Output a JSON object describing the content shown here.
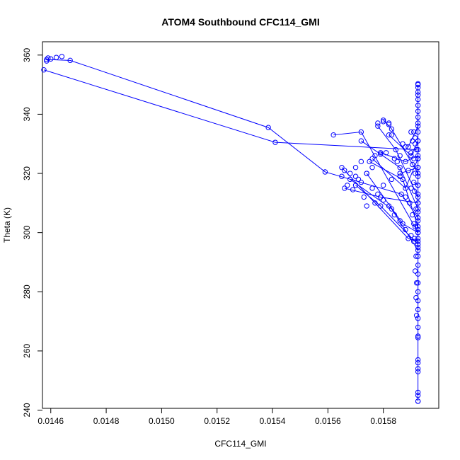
{
  "chart_data": {
    "type": "scatter",
    "title": "ATOM4 Southbound CFC114_GMI",
    "xlabel": "CFC114_GMI",
    "ylabel": "Theta (K)",
    "xlim": [
      0.01457,
      0.016
    ],
    "ylim": [
      240.6,
      364.5
    ],
    "x_ticks": [
      {
        "value": 0.0146,
        "label": "0.0146"
      },
      {
        "value": 0.0148,
        "label": "0.0148"
      },
      {
        "value": 0.015,
        "label": "0.0150"
      },
      {
        "value": 0.0152,
        "label": "0.0152"
      },
      {
        "value": 0.0154,
        "label": "0.0154"
      },
      {
        "value": 0.0156,
        "label": "0.0156"
      },
      {
        "value": 0.0158,
        "label": "0.0158"
      }
    ],
    "y_ticks": [
      {
        "value": 240,
        "label": "240"
      },
      {
        "value": 260,
        "label": "260"
      },
      {
        "value": 280,
        "label": "280"
      },
      {
        "value": 300,
        "label": "300"
      },
      {
        "value": 320,
        "label": "320"
      },
      {
        "value": 340,
        "label": "340"
      },
      {
        "value": 360,
        "label": "360"
      }
    ],
    "series_color": "#0000ff",
    "marker": "open-circle",
    "connected": true,
    "grid": false,
    "segments": [
      [
        [
          0.014585,
          358.5
        ],
        [
          0.01467,
          358.2
        ],
        [
          0.015385,
          335.5
        ],
        [
          0.01559,
          320.5
        ],
        [
          0.015865,
          313.0
        ],
        [
          0.015925,
          305.0
        ]
      ],
      [
        [
          0.014575,
          355.0
        ],
        [
          0.01541,
          330.5
        ],
        [
          0.01592,
          328.0
        ]
      ],
      [
        [
          0.01562,
          333.0
        ],
        [
          0.01572,
          334.0
        ],
        [
          0.015925,
          300.0
        ]
      ],
      [
        [
          0.0158,
          338.0
        ],
        [
          0.01583,
          335.0
        ],
        [
          0.015925,
          320.0
        ]
      ],
      [
        [
          0.01578,
          336.0
        ],
        [
          0.015845,
          328.0
        ],
        [
          0.015925,
          312.0
        ]
      ],
      [
        [
          0.01572,
          331.0
        ],
        [
          0.01586,
          322.0
        ],
        [
          0.015925,
          308.0
        ]
      ],
      [
        [
          0.01575,
          324.0
        ],
        [
          0.01587,
          318.0
        ],
        [
          0.015925,
          302.0
        ]
      ],
      [
        [
          0.01565,
          322.0
        ],
        [
          0.01589,
          298.0
        ],
        [
          0.015925,
          297.0
        ]
      ],
      [
        [
          0.01568,
          318.0
        ],
        [
          0.01583,
          308.0
        ],
        [
          0.015925,
          294.0
        ]
      ],
      [
        [
          0.0157,
          316.0
        ],
        [
          0.01579,
          309.0
        ],
        [
          0.015925,
          296.0
        ]
      ],
      [
        [
          0.01576,
          325.0
        ],
        [
          0.01588,
          315.0
        ],
        [
          0.015925,
          325.0
        ]
      ],
      [
        [
          0.01582,
          333.0
        ],
        [
          0.0159,
          326.0
        ],
        [
          0.015925,
          331.0
        ]
      ],
      [
        [
          0.01579,
          327.0
        ],
        [
          0.01588,
          324.0
        ],
        [
          0.015925,
          326.0
        ]
      ],
      [
        [
          0.01574,
          320.0
        ],
        [
          0.01587,
          303.0
        ],
        [
          0.015925,
          300.0
        ]
      ],
      [
        [
          0.01566,
          315.0
        ],
        [
          0.01579,
          312.0
        ],
        [
          0.015925,
          310.0
        ]
      ],
      [
        [
          0.01589,
          329.0
        ],
        [
          0.015925,
          336.0
        ]
      ],
      [
        [
          0.01586,
          320.0
        ],
        [
          0.015925,
          322.0
        ]
      ],
      [
        [
          0.01591,
          317.0
        ],
        [
          0.015925,
          316.0
        ]
      ],
      [
        [
          0.015925,
          350.0
        ],
        [
          0.015925,
          243.0
        ]
      ]
    ],
    "points": [
      [
        0.01459,
        359.0
      ],
      [
        0.0146,
        358.7
      ],
      [
        0.01462,
        359.2
      ],
      [
        0.01464,
        359.5
      ],
      [
        0.014585,
        358.0
      ],
      [
        0.01567,
        316.0
      ],
      [
        0.01569,
        314.5
      ],
      [
        0.01571,
        318.0
      ],
      [
        0.01573,
        312.0
      ],
      [
        0.01578,
        337.0
      ],
      [
        0.0158,
        337.5
      ],
      [
        0.01582,
        336.5
      ],
      [
        0.01582,
        337.0
      ],
      [
        0.01583,
        333.0
      ],
      [
        0.01576,
        322.0
      ],
      [
        0.01577,
        326.0
      ],
      [
        0.01579,
        326.5
      ],
      [
        0.01581,
        327.0
      ],
      [
        0.01585,
        324.0
      ],
      [
        0.01587,
        330.0
      ],
      [
        0.01588,
        329.0
      ],
      [
        0.0159,
        327.0
      ],
      [
        0.01565,
        319.0
      ],
      [
        0.01566,
        321.0
      ],
      [
        0.01568,
        320.0
      ],
      [
        0.0157,
        322.0
      ],
      [
        0.01572,
        324.0
      ],
      [
        0.01574,
        320.0
      ],
      [
        0.01576,
        315.0
      ],
      [
        0.01578,
        313.0
      ],
      [
        0.0158,
        311.0
      ],
      [
        0.01582,
        309.0
      ],
      [
        0.01584,
        306.0
      ],
      [
        0.01586,
        304.0
      ],
      [
        0.01588,
        301.0
      ],
      [
        0.0159,
        299.0
      ],
      [
        0.01591,
        297.0
      ],
      [
        0.01574,
        309.0
      ],
      [
        0.01577,
        310.0
      ],
      [
        0.0158,
        316.0
      ],
      [
        0.01583,
        318.0
      ],
      [
        0.01586,
        319.0
      ],
      [
        0.01589,
        321.0
      ],
      [
        0.015905,
        323.0
      ],
      [
        0.01588,
        312.0
      ],
      [
        0.015895,
        310.0
      ],
      [
        0.0157,
        319.0
      ],
      [
        0.01572,
        317.0
      ],
      [
        0.01584,
        325.0
      ],
      [
        0.01586,
        326.0
      ],
      [
        0.01591,
        334.0
      ],
      [
        0.015915,
        332.0
      ],
      [
        0.0159,
        315.0
      ],
      [
        0.015905,
        306.0
      ],
      [
        0.01591,
        303.0
      ],
      [
        0.015925,
        350.3
      ],
      [
        0.015925,
        349.0
      ],
      [
        0.015925,
        347.5
      ],
      [
        0.015925,
        346.5
      ],
      [
        0.015925,
        345.0
      ],
      [
        0.015925,
        343.0
      ],
      [
        0.015925,
        341.0
      ],
      [
        0.015925,
        339.0
      ],
      [
        0.015925,
        337.0
      ],
      [
        0.015925,
        334.0
      ],
      [
        0.015925,
        331.0
      ],
      [
        0.015925,
        328.0
      ],
      [
        0.015925,
        325.0
      ],
      [
        0.015925,
        322.0
      ],
      [
        0.015925,
        319.0
      ],
      [
        0.015925,
        316.0
      ],
      [
        0.015925,
        313.0
      ],
      [
        0.015925,
        310.0
      ],
      [
        0.015925,
        307.0
      ],
      [
        0.015925,
        304.0
      ],
      [
        0.015925,
        301.0
      ],
      [
        0.015925,
        298.0
      ],
      [
        0.015925,
        295.0
      ],
      [
        0.015925,
        292.0
      ],
      [
        0.015925,
        289.0
      ],
      [
        0.015925,
        286.0
      ],
      [
        0.015925,
        283.0
      ],
      [
        0.015925,
        280.0
      ],
      [
        0.015925,
        277.0
      ],
      [
        0.015925,
        274.0
      ],
      [
        0.015925,
        271.0
      ],
      [
        0.015925,
        268.0
      ],
      [
        0.015925,
        265.0
      ],
      [
        0.015925,
        264.5
      ],
      [
        0.015925,
        257.0
      ],
      [
        0.015925,
        256.0
      ],
      [
        0.015925,
        254.0
      ],
      [
        0.015925,
        253.0
      ],
      [
        0.015925,
        246.0
      ],
      [
        0.015925,
        245.0
      ],
      [
        0.015925,
        243.0
      ],
      [
        0.015915,
        330.0
      ],
      [
        0.01591,
        325.0
      ],
      [
        0.015915,
        320.0
      ],
      [
        0.015912,
        314.0
      ],
      [
        0.015918,
        308.0
      ],
      [
        0.015915,
        302.0
      ],
      [
        0.015912,
        298.0
      ],
      [
        0.015918,
        292.0
      ],
      [
        0.015915,
        287.0
      ],
      [
        0.01592,
        283.0
      ],
      [
        0.015918,
        278.0
      ],
      [
        0.01592,
        272.0
      ],
      [
        0.015905,
        331.0
      ],
      [
        0.0159,
        334.0
      ]
    ]
  }
}
